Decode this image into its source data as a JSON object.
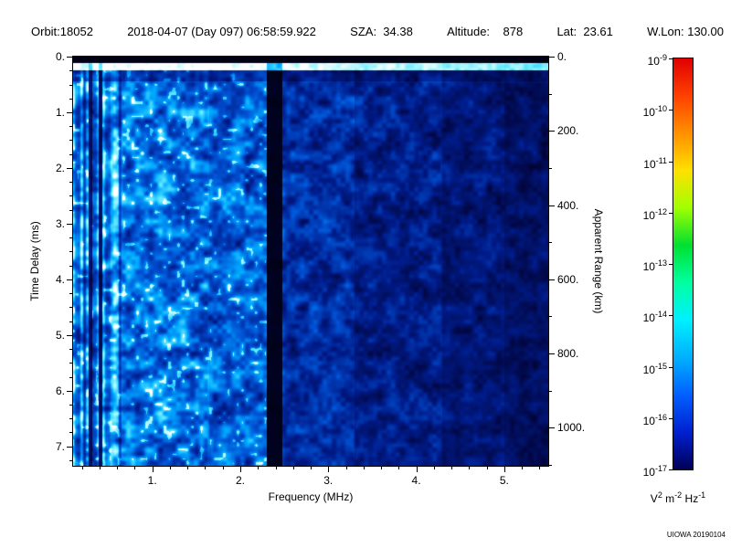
{
  "header": {
    "fields": [
      "Orbit:18052",
      "2018-04-07 (Day 097) 06:58:59.922",
      "SZA:  34.38",
      "Altitude:    878",
      "Lat:  23.61",
      "W.Lon: 130.00"
    ]
  },
  "chart_data": {
    "type": "heatmap",
    "title": "",
    "xlabel": "Frequency (MHz)",
    "ylabel": "Time Delay (ms)",
    "y2label": "Apparent Range (km)",
    "xlim": [
      0.1,
      5.5
    ],
    "ylim_ms": [
      0,
      7.35
    ],
    "km_per_ms": 150,
    "x_ticks": [
      {
        "v": 1,
        "label": "1."
      },
      {
        "v": 2,
        "label": "2."
      },
      {
        "v": 3,
        "label": "3."
      },
      {
        "v": 4,
        "label": "4."
      },
      {
        "v": 5,
        "label": "5."
      }
    ],
    "x_minor_step": 0.2,
    "y_ticks": [
      {
        "v": 0,
        "label": "0."
      },
      {
        "v": 1,
        "label": "1."
      },
      {
        "v": 2,
        "label": "2."
      },
      {
        "v": 3,
        "label": "3."
      },
      {
        "v": 4,
        "label": "4."
      },
      {
        "v": 5,
        "label": "5."
      },
      {
        "v": 6,
        "label": "6."
      },
      {
        "v": 7,
        "label": "7."
      }
    ],
    "y_minor_step": 0.25,
    "y2_ticks": [
      {
        "v": 0,
        "label": "0."
      },
      {
        "v": 200,
        "label": "200."
      },
      {
        "v": 400,
        "label": "400."
      },
      {
        "v": 600,
        "label": "600."
      },
      {
        "v": 800,
        "label": "800."
      },
      {
        "v": 1000,
        "label": "1000."
      }
    ],
    "y2_minor_step": 100,
    "colorbar": {
      "scale": "log",
      "tick_exponents": [
        -9,
        -10,
        -11,
        -12,
        -13,
        -14,
        -15,
        -16,
        -17
      ],
      "unit_parts": [
        {
          "base": "V",
          "sup": "2"
        },
        {
          "base": " m",
          "sup": "-2"
        },
        {
          "base": " Hz",
          "sup": "-1"
        }
      ],
      "gradient": [
        "#e00000",
        "#ff4000",
        "#ff9000",
        "#ffe000",
        "#a0ff00",
        "#00e030",
        "#00ffa0",
        "#00f0ff",
        "#00b0ff",
        "#0060ff",
        "#0020d0",
        "#000058"
      ]
    },
    "heatmap_render": {
      "seed": 18052,
      "leadin_black_ms": 0.12,
      "surface_echo": {
        "delay_ms": 0.175,
        "thickness_ms": 0.09
      },
      "bands": [
        {
          "f0": 0.1,
          "f1": 0.28,
          "level": 0.85
        },
        {
          "f0": 0.28,
          "f1": 0.315,
          "level": 0.28
        },
        {
          "f0": 0.315,
          "f1": 0.395,
          "level": 0.85
        },
        {
          "f0": 0.395,
          "f1": 0.43,
          "level": 0.33
        },
        {
          "f0": 0.43,
          "f1": 0.62,
          "level": 0.92
        },
        {
          "f0": 0.62,
          "f1": 1.65,
          "level": 0.82
        },
        {
          "f0": 1.65,
          "f1": 2.3,
          "level": 0.74
        },
        {
          "f0": 2.3,
          "f1": 2.48,
          "level": 0.07
        },
        {
          "f0": 2.48,
          "f1": 3.3,
          "level": 0.55
        },
        {
          "f0": 3.3,
          "f1": 4.3,
          "level": 0.46
        },
        {
          "f0": 4.3,
          "f1": 5.0,
          "level": 0.38
        },
        {
          "f0": 5.0,
          "f1": 5.51,
          "level": 0.32
        }
      ],
      "colormap": [
        {
          "v": 0.0,
          "rgb": [
            0,
            0,
            10
          ]
        },
        {
          "v": 0.12,
          "rgb": [
            2,
            5,
            60
          ]
        },
        {
          "v": 0.3,
          "rgb": [
            0,
            28,
            138
          ]
        },
        {
          "v": 0.5,
          "rgb": [
            0,
            82,
            212
          ]
        },
        {
          "v": 0.68,
          "rgb": [
            0,
            168,
            255
          ]
        },
        {
          "v": 0.82,
          "rgb": [
            92,
            232,
            255
          ]
        },
        {
          "v": 0.93,
          "rgb": [
            190,
            250,
            255
          ]
        },
        {
          "v": 1.0,
          "rgb": [
            255,
            255,
            255
          ]
        }
      ]
    }
  },
  "credit": "UIOWA 20190104"
}
